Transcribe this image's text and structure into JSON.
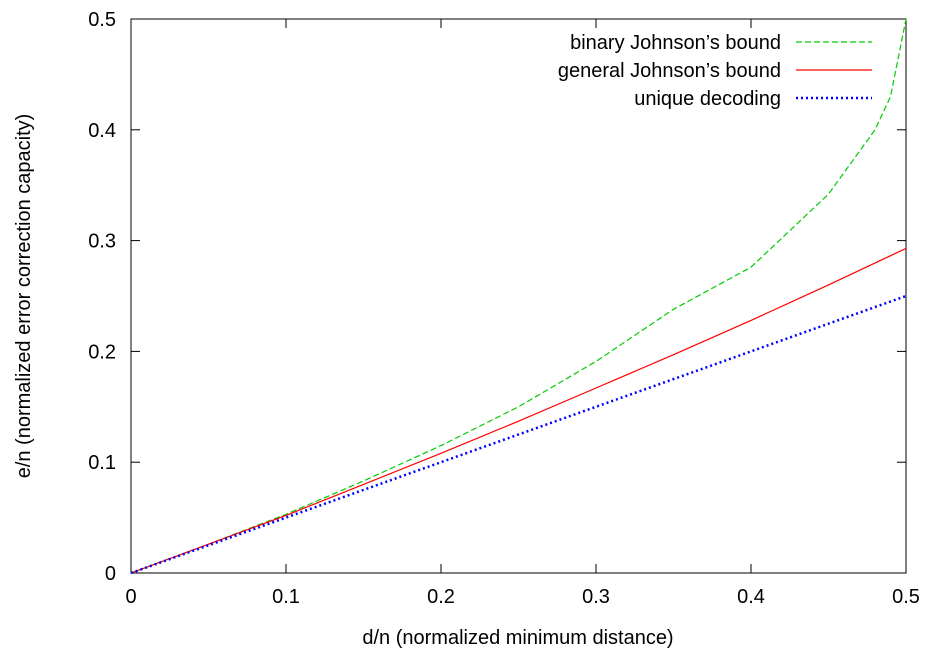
{
  "chart_data": {
    "type": "line",
    "xlabel": "d/n (normalized minimum distance)",
    "ylabel": "e/n (normalized error correction capacity)",
    "xlim": [
      0,
      0.5
    ],
    "ylim": [
      0,
      0.5
    ],
    "xticks": [
      0,
      0.1,
      0.2,
      0.3,
      0.4,
      0.5
    ],
    "xtick_labels": [
      "0",
      "0.1",
      "0.2",
      "0.3",
      "0.4",
      "0.5"
    ],
    "yticks": [
      0,
      0.1,
      0.2,
      0.3,
      0.4,
      0.5
    ],
    "ytick_labels": [
      "0",
      "0.1",
      "0.2",
      "0.3",
      "0.4",
      "0.5"
    ],
    "grid": false,
    "legend_position": "top-right",
    "series": [
      {
        "name": "binary Johnson’s bound",
        "color": "#00cc00",
        "style": "dashed",
        "x": [
          0,
          0.05,
          0.1,
          0.15,
          0.2,
          0.25,
          0.3,
          0.35,
          0.4,
          0.45,
          0.48,
          0.49,
          0.5
        ],
        "y": [
          0,
          0.026,
          0.053,
          0.083,
          0.115,
          0.15,
          0.191,
          0.238,
          0.276,
          0.342,
          0.4,
          0.43,
          0.5
        ]
      },
      {
        "name": "general Johnson’s bound",
        "color": "#ff0000",
        "style": "solid",
        "x": [
          0,
          0.05,
          0.1,
          0.15,
          0.2,
          0.25,
          0.3,
          0.35,
          0.4,
          0.45,
          0.5
        ],
        "y": [
          0,
          0.026,
          0.052,
          0.08,
          0.108,
          0.137,
          0.167,
          0.197,
          0.228,
          0.26,
          0.293
        ]
      },
      {
        "name": "unique decoding",
        "color": "#0000ff",
        "style": "dotted",
        "x": [
          0,
          0.1,
          0.2,
          0.3,
          0.4,
          0.5
        ],
        "y": [
          0,
          0.05,
          0.1,
          0.15,
          0.2,
          0.25
        ]
      }
    ]
  }
}
